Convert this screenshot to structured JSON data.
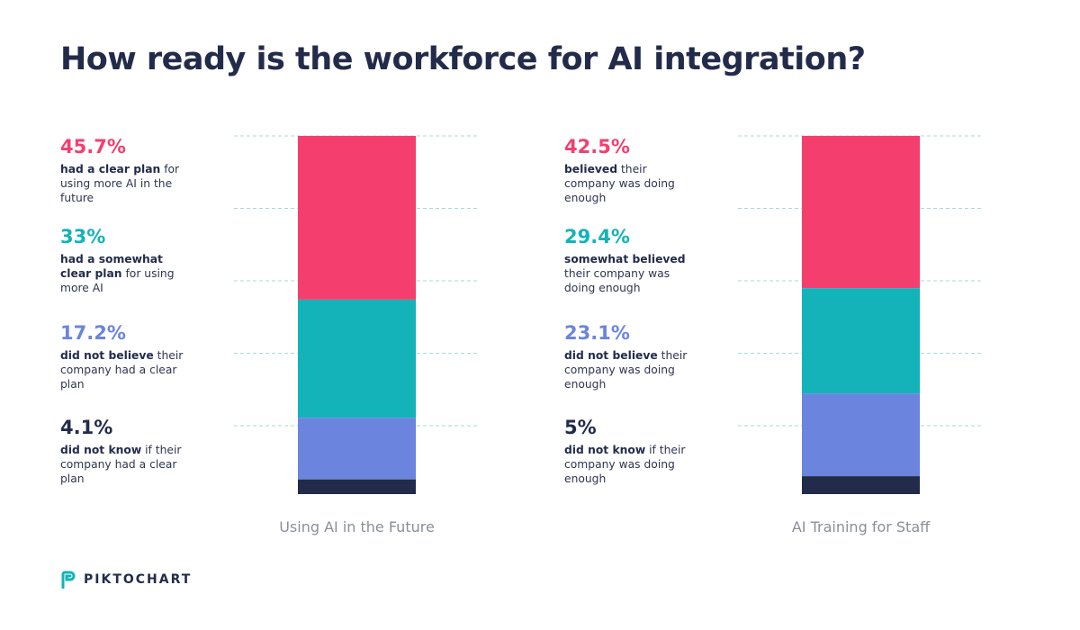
{
  "title": "How ready is the workforce for AI integration?",
  "brand": "PIKTOCHART",
  "colors": {
    "pink": "#f43f6e",
    "teal": "#13b3b9",
    "blue": "#6b84de",
    "navy": "#222b4a",
    "grid": "#a9d9d6"
  },
  "chart_data": [
    {
      "type": "bar",
      "stacked": true,
      "xlabel": "Using AI in the Future",
      "segments": [
        {
          "value": 45.7,
          "label": "45.7%",
          "bold": "had a clear plan",
          "rest": " for using more AI in the future",
          "color": "#f43f6e"
        },
        {
          "value": 33,
          "label": "33%",
          "bold": "had a somewhat clear plan",
          "rest": " for using more AI",
          "color": "#13b3b9"
        },
        {
          "value": 17.2,
          "label": "17.2%",
          "bold": "did not believe",
          "rest": " their company had a clear plan",
          "color": "#6b84de"
        },
        {
          "value": 4.1,
          "label": "4.1%",
          "bold": "did not know",
          "rest": " if their company had a clear plan",
          "color": "#222b4a"
        }
      ]
    },
    {
      "type": "bar",
      "stacked": true,
      "xlabel": "AI Training for Staff",
      "segments": [
        {
          "value": 42.5,
          "label": "42.5%",
          "bold": "believed",
          "rest": " their company was doing enough",
          "color": "#f43f6e"
        },
        {
          "value": 29.4,
          "label": "29.4%",
          "bold": "somewhat believed",
          "rest": " their company was doing enough",
          "color": "#13b3b9"
        },
        {
          "value": 23.1,
          "label": "23.1%",
          "bold": "did not believe",
          "rest": " their company was doing enough",
          "color": "#6b84de"
        },
        {
          "value": 5,
          "label": "5%",
          "bold": "did not know",
          "rest": " if their company was doing enough",
          "color": "#222b4a"
        }
      ]
    }
  ]
}
